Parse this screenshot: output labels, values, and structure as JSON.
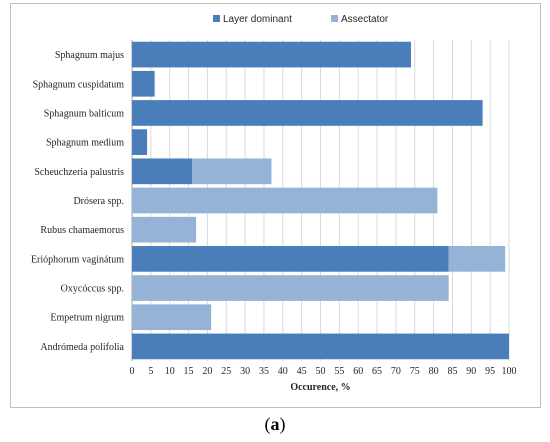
{
  "chart_data": {
    "type": "bar",
    "orientation": "horizontal",
    "stacked": true,
    "categories": [
      "Sphagnum majus",
      "Sphagnum cuspidatum",
      "Sphagnum balticum",
      "Sphagnum medium",
      "Scheuchzeria palustris",
      "Drósera spp.",
      "Rubus chamaemorus",
      "Erióphorum vaginátum",
      "Oxycóccus spp.",
      "Empetrum nigrum",
      "Andrómeda polifolia"
    ],
    "series": [
      {
        "name": "Layer dominant",
        "color": "#4a7ebb",
        "values": [
          74,
          6,
          93,
          4,
          16,
          0,
          0,
          84,
          0,
          0,
          100
        ]
      },
      {
        "name": "Assectator",
        "color": "#95b3d7",
        "values": [
          0,
          0,
          0,
          0,
          21,
          81,
          17,
          15,
          84,
          21,
          0
        ]
      }
    ],
    "xlabel": "Occurence, %",
    "ylabel": "",
    "xlim": [
      0,
      100
    ],
    "xticks": [
      0,
      5,
      10,
      15,
      20,
      25,
      30,
      35,
      40,
      45,
      50,
      55,
      60,
      65,
      70,
      75,
      80,
      85,
      90,
      95,
      100
    ],
    "grid": true,
    "legend": "top"
  },
  "caption": {
    "open": "(",
    "letter": "a",
    "close": ")"
  }
}
